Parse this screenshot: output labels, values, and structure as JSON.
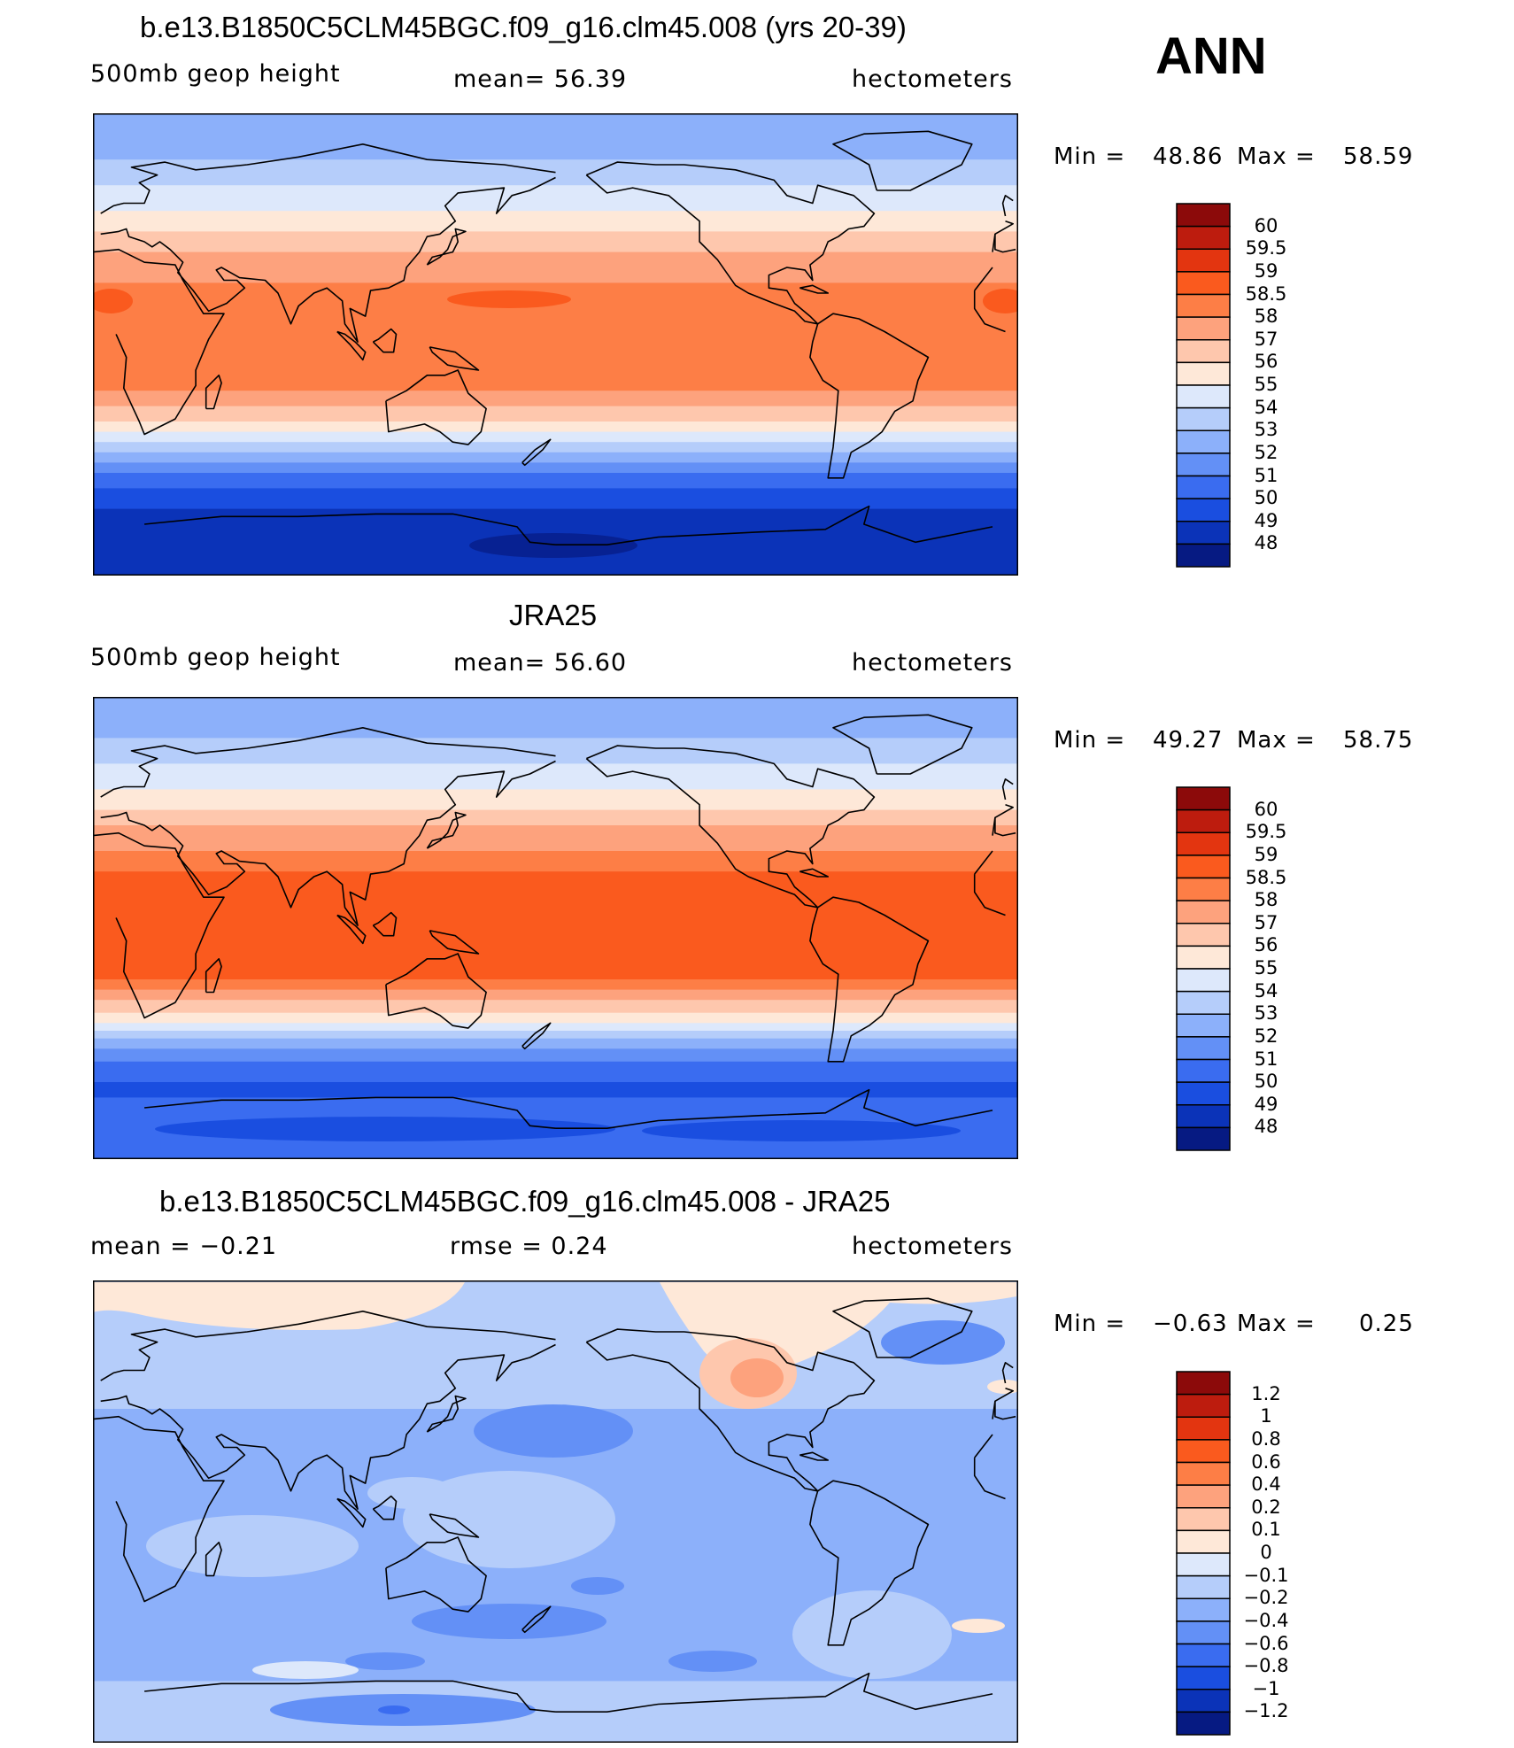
{
  "season": "ANN",
  "panels": [
    {
      "id": "model",
      "title": "b.e13.B1850C5CLM45BGC.f09_g16.clm45.008 (yrs 20-39)",
      "left_label": "500mb  geop  height",
      "center_label": "mean=   56.39",
      "units": "hectometers",
      "min_label": "Min  =",
      "min_value": "48.86",
      "max_label": "Max  =",
      "max_value": "58.59",
      "colorbar": {
        "labels": [
          "60",
          "59.5",
          "59",
          "58.5",
          "58",
          "57",
          "56",
          "55",
          "54",
          "53",
          "52",
          "51",
          "50",
          "49",
          "48"
        ],
        "colors": [
          "#8c0a0a",
          "#bd1c0e",
          "#e33510",
          "#fa5a1e",
          "#fd7e46",
          "#fda27d",
          "#fec7ad",
          "#fee8d8",
          "#dde8fb",
          "#b5cdfa",
          "#8cb0fa",
          "#6390f6",
          "#3a6cf0",
          "#1a4ee0",
          "#0b33b8",
          "#061a82"
        ],
        "values": [
          60,
          59.5,
          59,
          58.5,
          58,
          57,
          56,
          55,
          54,
          53,
          52,
          51,
          50,
          49,
          48
        ]
      },
      "bands": [
        {
          "lat": 90,
          "color": "#8cb0fa"
        },
        {
          "lat": 72,
          "color": "#b5cdfa"
        },
        {
          "lat": 62,
          "color": "#dde8fb"
        },
        {
          "lat": 52,
          "color": "#fee8d8"
        },
        {
          "lat": 44,
          "color": "#fec7ad"
        },
        {
          "lat": 36,
          "color": "#fda27d"
        },
        {
          "lat": 24,
          "color": "#fd7e46"
        },
        {
          "lat": -18,
          "color": "#fda27d"
        },
        {
          "lat": -24,
          "color": "#fec7ad"
        },
        {
          "lat": -30,
          "color": "#fee8d8"
        },
        {
          "lat": -34,
          "color": "#dde8fb"
        },
        {
          "lat": -38,
          "color": "#b5cdfa"
        },
        {
          "lat": -42,
          "color": "#8cb0fa"
        },
        {
          "lat": -46,
          "color": "#6390f6"
        },
        {
          "lat": -50,
          "color": "#3a6cf0"
        },
        {
          "lat": -56,
          "color": "#1a4ee0"
        },
        {
          "lat": -64,
          "color": "#0b33b8"
        }
      ]
    },
    {
      "id": "obs",
      "title": "JRA25",
      "left_label": "500mb  geop  height",
      "center_label": "mean=   56.60",
      "units": "hectometers",
      "min_label": "Min  =",
      "min_value": "49.27",
      "max_label": "Max  =",
      "max_value": "58.75",
      "colorbar": {
        "labels": [
          "60",
          "59.5",
          "59",
          "58.5",
          "58",
          "57",
          "56",
          "55",
          "54",
          "53",
          "52",
          "51",
          "50",
          "49",
          "48"
        ],
        "colors": [
          "#8c0a0a",
          "#bd1c0e",
          "#e33510",
          "#fa5a1e",
          "#fd7e46",
          "#fda27d",
          "#fec7ad",
          "#fee8d8",
          "#dde8fb",
          "#b5cdfa",
          "#8cb0fa",
          "#6390f6",
          "#3a6cf0",
          "#1a4ee0",
          "#0b33b8",
          "#061a82"
        ],
        "values": [
          60,
          59.5,
          59,
          58.5,
          58,
          57,
          56,
          55,
          54,
          53,
          52,
          51,
          50,
          49,
          48
        ]
      },
      "bands": [
        {
          "lat": 90,
          "color": "#8cb0fa"
        },
        {
          "lat": 74,
          "color": "#b5cdfa"
        },
        {
          "lat": 64,
          "color": "#dde8fb"
        },
        {
          "lat": 54,
          "color": "#fee8d8"
        },
        {
          "lat": 46,
          "color": "#fec7ad"
        },
        {
          "lat": 40,
          "color": "#fda27d"
        },
        {
          "lat": 30,
          "color": "#fd7e46"
        },
        {
          "lat": 22,
          "color": "#fa5a1e"
        },
        {
          "lat": -20,
          "color": "#fd7e46"
        },
        {
          "lat": -24,
          "color": "#fda27d"
        },
        {
          "lat": -28,
          "color": "#fec7ad"
        },
        {
          "lat": -33,
          "color": "#fee8d8"
        },
        {
          "lat": -37,
          "color": "#dde8fb"
        },
        {
          "lat": -40,
          "color": "#b5cdfa"
        },
        {
          "lat": -43,
          "color": "#8cb0fa"
        },
        {
          "lat": -47,
          "color": "#6390f6"
        },
        {
          "lat": -52,
          "color": "#3a6cf0"
        },
        {
          "lat": -60,
          "color": "#1a4ee0"
        },
        {
          "lat": -66,
          "color": "#3a6cf0"
        }
      ]
    },
    {
      "id": "diff",
      "title": "b.e13.B1850C5CLM45BGC.f09_g16.clm45.008 - JRA25",
      "left_label": "mean  =    −0.21",
      "center_label": "rmse  =     0.24",
      "units": "hectometers",
      "min_label": "Min  =",
      "min_value": "−0.63",
      "max_label": "Max  =",
      "max_value": "0.25",
      "colorbar": {
        "labels": [
          "1.2",
          "1",
          "0.8",
          "0.6",
          "0.4",
          "0.2",
          "0.1",
          "0",
          "−0.1",
          "−0.2",
          "−0.4",
          "−0.6",
          "−0.8",
          "−1",
          "−1.2"
        ],
        "colors": [
          "#8c0a0a",
          "#bd1c0e",
          "#e33510",
          "#fa5a1e",
          "#fd7e46",
          "#fda27d",
          "#fec7ad",
          "#fee8d8",
          "#dde8fb",
          "#b5cdfa",
          "#8cb0fa",
          "#6390f6",
          "#3a6cf0",
          "#1a4ee0",
          "#0b33b8",
          "#061a82"
        ],
        "values": [
          1.2,
          1,
          0.8,
          0.6,
          0.4,
          0.2,
          0.1,
          0,
          -0.1,
          -0.2,
          -0.4,
          -0.6,
          -0.8,
          -1,
          -1.2
        ]
      },
      "bands": [
        {
          "lat": 90,
          "color": "#b5cdfa"
        },
        {
          "lat": 40,
          "color": "#8cb0fa"
        },
        {
          "lat": -66,
          "color": "#b5cdfa"
        }
      ]
    }
  ]
}
